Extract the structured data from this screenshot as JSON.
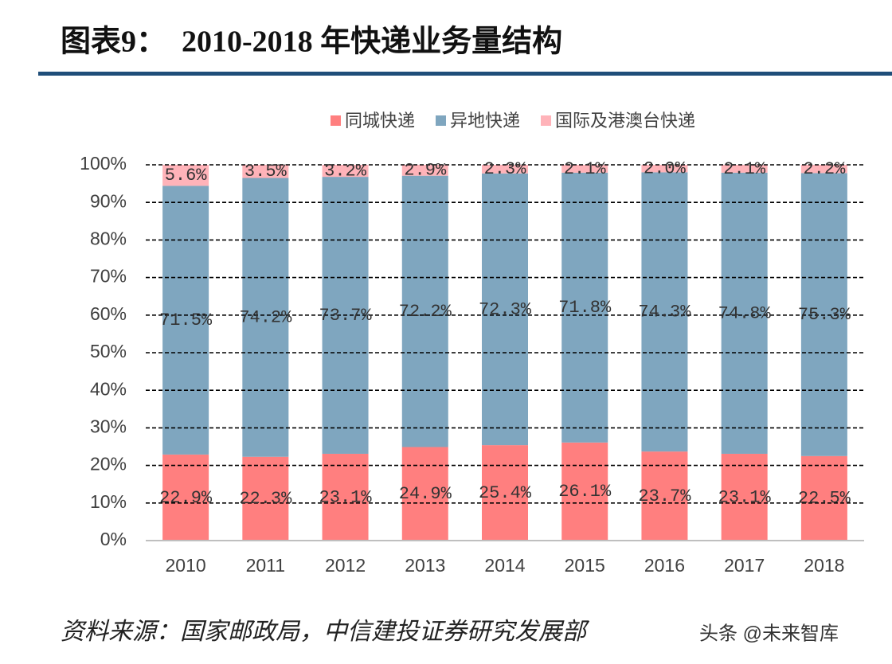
{
  "chart_data": {
    "type": "stacked-bar",
    "title": "图表9：  2010-2018 年快递业务量结构",
    "categories": [
      "2010",
      "2011",
      "2012",
      "2013",
      "2014",
      "2015",
      "2016",
      "2017",
      "2018"
    ],
    "series": [
      {
        "name": "同城快递",
        "color": "#ff7f7f",
        "values": [
          22.9,
          22.3,
          23.1,
          24.9,
          25.4,
          26.1,
          23.7,
          23.1,
          22.5
        ],
        "value_labels": [
          "22.9%",
          "22.3%",
          "23.1%",
          "24.9%",
          "25.4%",
          "26.1%",
          "23.7%",
          "23.1%",
          "22.5%"
        ]
      },
      {
        "name": "异地快递",
        "color": "#7fa6bf",
        "values": [
          71.5,
          74.2,
          73.7,
          72.2,
          72.3,
          71.8,
          74.3,
          74.8,
          75.3
        ],
        "value_labels": [
          "71.5%",
          "74.2%",
          "73.7%",
          "72.2%",
          "72.3%",
          "71.8%",
          "74.3%",
          "74.8%",
          "75.3%"
        ]
      },
      {
        "name": "国际及港澳台快递",
        "color": "#ffb3b9",
        "values": [
          5.6,
          3.5,
          3.2,
          2.9,
          2.3,
          2.1,
          2.0,
          2.1,
          2.2
        ],
        "value_labels": [
          "5.6%",
          "3.5%",
          "3.2%",
          "2.9%",
          "2.3%",
          "2.1%",
          "2.0%",
          "2.1%",
          "2.2%"
        ]
      }
    ],
    "ylim": [
      0,
      100
    ],
    "yticks": [
      {
        "value": 0,
        "label": "0%"
      },
      {
        "value": 10,
        "label": "10%"
      },
      {
        "value": 20,
        "label": "20%"
      },
      {
        "value": 30,
        "label": "30%"
      },
      {
        "value": 40,
        "label": "40%"
      },
      {
        "value": 50,
        "label": "50%"
      },
      {
        "value": 60,
        "label": "60%"
      },
      {
        "value": 70,
        "label": "70%"
      },
      {
        "value": 80,
        "label": "80%"
      },
      {
        "value": 90,
        "label": "90%"
      },
      {
        "value": 100,
        "label": "100%"
      }
    ],
    "grid": true,
    "legend": "top",
    "source": "资料来源：国家邮政局，中信建投证券研究发展部",
    "watermark": "头条 @未来智库"
  }
}
